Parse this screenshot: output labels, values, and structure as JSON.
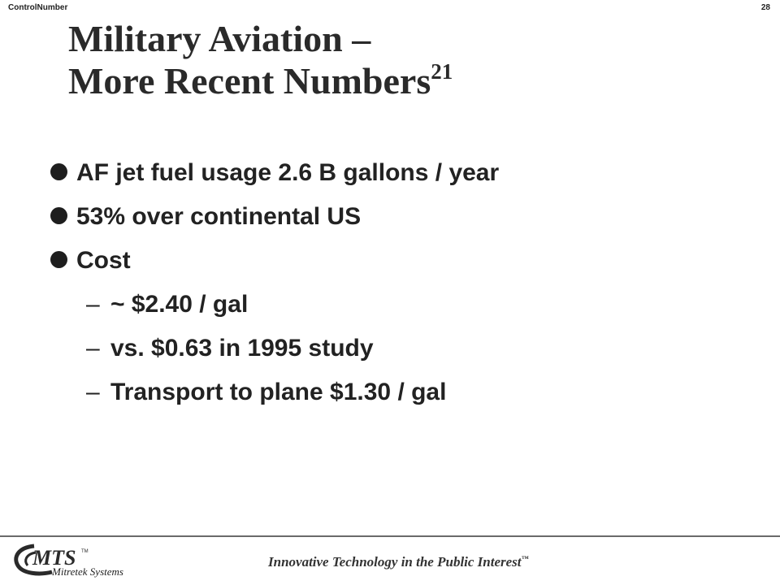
{
  "header": {
    "control_number": "ControlNumber",
    "page_number": "28"
  },
  "title": {
    "line1": "Military Aviation –",
    "line2": "More Recent Numbers",
    "superscript": "21"
  },
  "bullets": [
    {
      "level": 1,
      "text": "AF jet fuel usage 2.6 B gallons / year"
    },
    {
      "level": 1,
      "text": "53% over continental US"
    },
    {
      "level": 1,
      "text": "Cost"
    },
    {
      "level": 2,
      "text": "~ $2.40 / gal"
    },
    {
      "level": 2,
      "text": "vs. $0.63 in 1995 study"
    },
    {
      "level": 2,
      "text": "Transport to plane $1.30 / gal"
    }
  ],
  "bullet_dash": "–",
  "footer": {
    "logo_text": "MTS",
    "logo_tm": "TM",
    "logo_subtitle": "Mitretek Systems",
    "tagline": "Innovative Technology in the Public Interest",
    "tagline_tm": "™"
  }
}
